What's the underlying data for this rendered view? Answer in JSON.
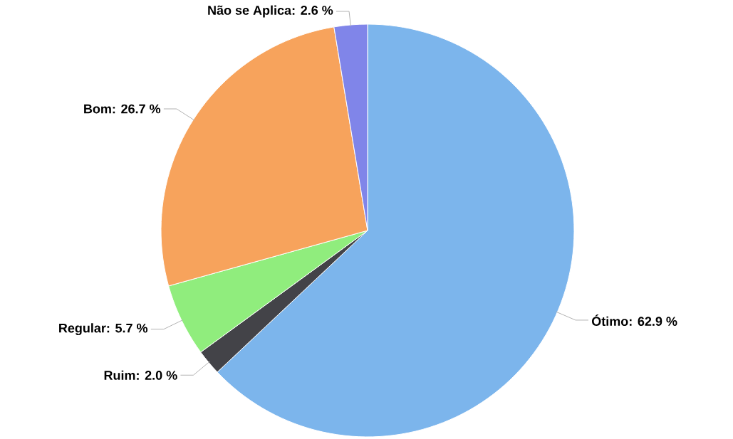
{
  "chart_data": {
    "type": "pie",
    "categories": [
      "Ótimo",
      "Ruim",
      "Regular",
      "Bom",
      "Não se Aplica"
    ],
    "values": [
      62.9,
      2.0,
      5.7,
      26.7,
      2.6
    ],
    "colors": [
      "#7cb5ec",
      "#434348",
      "#90ed7d",
      "#f7a35c",
      "#8085e9"
    ],
    "value_labels": [
      ": 62.9 %",
      ": 2.0 %",
      ": 5.7 %",
      ": 26.7 %",
      ": 2.6 %"
    ]
  }
}
